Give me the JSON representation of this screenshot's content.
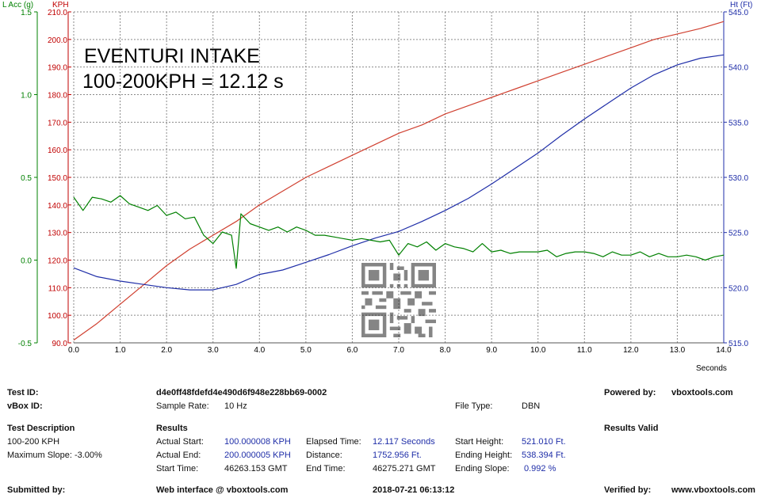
{
  "chart_data": {
    "type": "line",
    "title": "EVENTURI INTAKE",
    "subtitle": "100-200KPH = 12.12 s",
    "xlabel": "Seconds",
    "xlim": [
      0,
      14
    ],
    "xticks": [
      "0.0",
      "1.0",
      "2.0",
      "3.0",
      "4.0",
      "5.0",
      "6.0",
      "7.0",
      "8.0",
      "9.0",
      "10.0",
      "11.0",
      "12.0",
      "13.0",
      "14.0"
    ],
    "axes": {
      "kph": {
        "label": "KPH",
        "ylim": [
          90,
          210
        ],
        "ticks": [
          "90.0",
          "100.0",
          "110.0",
          "120.0",
          "130.0",
          "140.0",
          "150.0",
          "160.0",
          "170.0",
          "180.0",
          "190.0",
          "200.0",
          "210.0"
        ],
        "color": "#c00000"
      },
      "lacc": {
        "label": "L Acc (g)",
        "ylim": [
          -0.5,
          1.5
        ],
        "ticks": [
          "-0.5",
          "0.0",
          "0.5",
          "1.0",
          "1.5"
        ],
        "color": "#008000"
      },
      "ht": {
        "label": "Ht (Ft)",
        "ylim": [
          515,
          545
        ],
        "ticks": [
          "515.0",
          "520.0",
          "525.0",
          "530.0",
          "535.0",
          "540.0",
          "545.0"
        ],
        "color": "#1f2ea8"
      }
    },
    "grid": true,
    "series": [
      {
        "axis": "kph",
        "color": "#d04030",
        "x": [
          0,
          0.5,
          1,
          1.5,
          2,
          2.5,
          3,
          3.5,
          4,
          4.5,
          5,
          5.5,
          6,
          6.5,
          7,
          7.5,
          8,
          8.5,
          9,
          9.5,
          10,
          10.5,
          11,
          11.5,
          12,
          12.5,
          13,
          13.5,
          14
        ],
        "y": [
          91,
          97,
          104,
          111,
          118,
          124,
          129,
          134,
          140,
          145,
          150,
          154,
          158,
          162,
          166,
          169,
          173,
          176,
          179,
          182,
          185,
          188,
          191,
          194,
          197,
          200,
          202,
          204,
          206.5
        ]
      },
      {
        "axis": "ht",
        "color": "#1f2ea8",
        "x": [
          0,
          0.5,
          1,
          1.5,
          2,
          2.5,
          3,
          3.5,
          4,
          4.5,
          5,
          5.5,
          6,
          6.5,
          7,
          7.5,
          8,
          8.5,
          9,
          9.5,
          10,
          10.5,
          11,
          11.5,
          12,
          12.5,
          13,
          13.5,
          14
        ],
        "y": [
          521.8,
          521,
          520.6,
          520.3,
          520,
          519.8,
          519.8,
          520.3,
          521.2,
          521.6,
          522.3,
          523,
          523.8,
          524.5,
          525.1,
          526,
          527,
          528.1,
          529.4,
          530.8,
          532.2,
          533.8,
          535.3,
          536.7,
          538.1,
          539.3,
          540.2,
          540.8,
          541.1
        ]
      },
      {
        "axis": "lacc",
        "color": "#008000",
        "x": [
          0,
          0.2,
          0.4,
          0.6,
          0.8,
          1,
          1.2,
          1.4,
          1.6,
          1.8,
          2,
          2.2,
          2.4,
          2.6,
          2.8,
          3,
          3.2,
          3.4,
          3.5,
          3.6,
          3.8,
          4,
          4.2,
          4.4,
          4.6,
          4.8,
          5,
          5.2,
          5.4,
          5.6,
          5.8,
          6,
          6.2,
          6.4,
          6.6,
          6.8,
          7,
          7.2,
          7.4,
          7.6,
          7.8,
          8,
          8.2,
          8.4,
          8.6,
          8.8,
          9,
          9.2,
          9.4,
          9.6,
          9.8,
          10,
          10.2,
          10.4,
          10.6,
          10.8,
          11,
          11.2,
          11.4,
          11.6,
          11.8,
          12,
          12.2,
          12.4,
          12.6,
          12.8,
          13,
          13.2,
          13.4,
          13.6,
          13.8,
          14
        ],
        "y": [
          0.38,
          0.3,
          0.38,
          0.37,
          0.35,
          0.39,
          0.34,
          0.32,
          0.3,
          0.33,
          0.27,
          0.29,
          0.25,
          0.26,
          0.15,
          0.1,
          0.17,
          0.15,
          -0.05,
          0.28,
          0.22,
          0.2,
          0.18,
          0.2,
          0.17,
          0.2,
          0.18,
          0.15,
          0.15,
          0.14,
          0.13,
          0.12,
          0.13,
          0.12,
          0.11,
          0.12,
          0.03,
          0.1,
          0.08,
          0.11,
          0.06,
          0.1,
          0.08,
          0.07,
          0.05,
          0.1,
          0.05,
          0.06,
          0.04,
          0.05,
          0.05,
          0.05,
          0.06,
          0.02,
          0.04,
          0.05,
          0.05,
          0.04,
          0.02,
          0.05,
          0.03,
          0.03,
          0.05,
          0.02,
          0.04,
          0.02,
          0.02,
          0.03,
          0.02,
          0.0,
          0.02,
          0.03
        ]
      }
    ]
  },
  "info": {
    "test_id_label": "Test ID:",
    "test_id": "d4e0ff48fdefd4e490d6f948e228bb69-0002",
    "vbox_id_label": "vBox ID:",
    "sample_rate_label": "Sample Rate:",
    "sample_rate": "10 Hz",
    "file_type_label": "File Type:",
    "file_type": "DBN",
    "powered_by_label": "Powered by:",
    "powered_by": "vboxtools.com",
    "test_desc_label": "Test Description",
    "test_desc": "100-200 KPH",
    "max_slope": "Maximum Slope:  -3.00%",
    "results_label": "Results",
    "results_valid": "Results Valid",
    "actual_start_label": "Actual Start:",
    "actual_start": "100.000008 KPH",
    "actual_end_label": "Actual End:",
    "actual_end": "200.000005 KPH",
    "start_time_label": "Start Time:",
    "start_time": "46263.153 GMT",
    "elapsed_label": "Elapsed Time:",
    "elapsed": "12.117 Seconds",
    "distance_label": "Distance:",
    "distance": "1752.956 Ft.",
    "end_time_label": "End Time:",
    "end_time": "46275.271 GMT",
    "start_height_label": "Start Height:",
    "start_height": "521.010 Ft.",
    "ending_height_label": "Ending Height:",
    "ending_height": "538.394 Ft.",
    "ending_slope_label": "Ending Slope:",
    "ending_slope": "0.992 %",
    "submitted_label": "Submitted by:",
    "web_interface": "Web interface @ vboxtools.com",
    "timestamp": "2018-07-21 06:13:12",
    "verified_label": "Verified by:",
    "verified": "www.vboxtools.com"
  }
}
